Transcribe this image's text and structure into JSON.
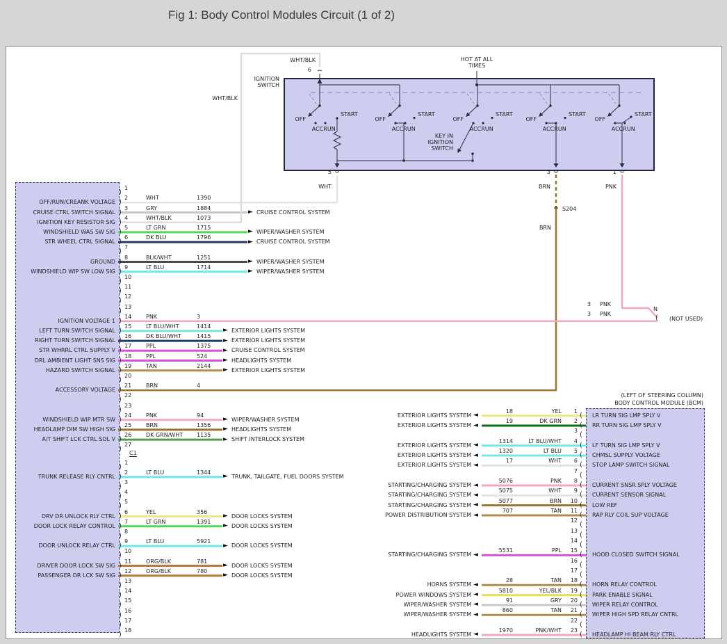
{
  "title": "Fig 1: Body Control Modules Circuit (1 of 2)",
  "colors": {
    "background": "#d6d6d6",
    "canvas": "#ffffff",
    "box_fill": "#cdcdf0",
    "box_border": "#23233c",
    "schematic_line": "#2b2b3b",
    "label_text": "#1e1e1e",
    "wire": {
      "WHT": "#e3e3e3",
      "GRY": "#c6c6c6",
      "WHT/BLK": "#dcdcdc",
      "LT GRN": "#55d655",
      "DK BLU": "#1c3a63",
      "BLK/WHT": "#4a4a44",
      "LT BLU": "#70e8e8",
      "PNK": "#f0a8bc",
      "LT BLU/WHT": "#70e8e8",
      "DK BLU/WHT": "#1c3a63",
      "PPL": "#d94fd9",
      "TAN": "#ae8e4e",
      "BRN": "#94782e",
      "DK GRN/WHT": "#4f9e4f",
      "YEL": "#ece97e",
      "ORG/BLK": "#b8793e",
      "DK GRN": "#0e6e11",
      "YEL/BLK": "#e3e055",
      "PNK/WHT": "#f0a8bc"
    }
  },
  "ignition_switch": {
    "label": "IGNITION SWITCH",
    "hot_label": "HOT AT ALL TIMES",
    "key_in_label": "KEY IN IGNITION SWITCH",
    "positions": [
      "OFF",
      "ACC",
      "RUN",
      "START"
    ],
    "top_pin": {
      "number": "6",
      "wire_color": "WHT/BLK",
      "riser_label": "WHT/BLK"
    },
    "bottom_pins": [
      {
        "number": "5",
        "color": "WHT"
      },
      {
        "number": "3",
        "color": "BRN"
      },
      {
        "number": "1",
        "color": "PNK"
      }
    ],
    "splice_label": "S204",
    "brn_lower_label": "BRN",
    "not_used": {
      "stubs": [
        {
          "circuit": "3",
          "color": "PNK"
        },
        {
          "circuit": "3",
          "color": "PNK"
        }
      ],
      "pin": "N",
      "text": "(NOT USED)"
    }
  },
  "left_connector": {
    "separator": "C1",
    "section1": [
      {
        "n": "1"
      },
      {
        "n": "2",
        "label": "OFF/RUN/CREANK VOLTAGE",
        "color": "WHT",
        "circuit": "1390",
        "route": "ign5"
      },
      {
        "n": "3",
        "label": "CRUISE CTRL SWITCH SIGNAL",
        "color": "GRY",
        "circuit": "1884",
        "system": "CRUISE CONTROL SYSTEM"
      },
      {
        "n": "4",
        "label": "IGNITION KEY RESISTOR SIG",
        "color": "WHT/BLK",
        "circuit": "1073",
        "route": "ign6"
      },
      {
        "n": "5",
        "label": "WINDSHIELD WAS SW SIG",
        "color": "LT GRN",
        "circuit": "1715",
        "system": "WIPER/WASHER SYSTEM"
      },
      {
        "n": "6",
        "label": "STR WHEEL CTRL SIGNAL",
        "color": "DK BLU",
        "circuit": "1796",
        "system": "CRUISE CONTROL SYSTEM"
      },
      {
        "n": "7"
      },
      {
        "n": "8",
        "label": "GROUND",
        "color": "BLK/WHT",
        "circuit": "1251",
        "system": "WIPER/WASHER SYSTEM"
      },
      {
        "n": "9",
        "label": "WINDSHIELD WIP SW LOW SIG",
        "color": "LT BLU",
        "circuit": "1714",
        "system": "WIPER/WASHER SYSTEM"
      },
      {
        "n": "10"
      },
      {
        "n": "11"
      },
      {
        "n": "12"
      },
      {
        "n": "13"
      },
      {
        "n": "14",
        "label": "IGNITION VOLTAGE 1",
        "color": "PNK",
        "circuit": "3",
        "route": "notused"
      },
      {
        "n": "15",
        "label": "LEFT TURN SWITCH SIGNAL",
        "color": "LT BLU/WHT",
        "circuit": "1414",
        "system": "EXTERIOR LIGHTS SYSTEM"
      },
      {
        "n": "16",
        "label": "RIGHT TURN SWITCH SIGNAL",
        "color": "DK BLU/WHT",
        "circuit": "1415",
        "system": "EXTERIOR LIGHTS SYSTEM"
      },
      {
        "n": "17",
        "label": "STR WHRRL CTRL SUPPLY V",
        "color": "PPL",
        "circuit": "1375",
        "system": "CRUISE CONTROL SYSTEM"
      },
      {
        "n": "18",
        "label": "DRL AMBIENT LIGHT SNS SIG",
        "color": "PPL",
        "circuit": "524",
        "system": "HEADLIGHTS SYSTEM"
      },
      {
        "n": "19",
        "label": "HAZARD SWITCH SIGNAL",
        "color": "TAN",
        "circuit": "2144",
        "system": "EXTERIOR LIGHTS SYSTEM"
      },
      {
        "n": "20"
      },
      {
        "n": "21",
        "label": "ACCESSORY VOLTAGE",
        "color": "BRN",
        "circuit": "4",
        "route": "ign3"
      },
      {
        "n": "22"
      },
      {
        "n": "23"
      },
      {
        "n": "24",
        "label": "WINDSHIELD WIP MTR SW",
        "color": "PNK",
        "circuit": "94",
        "system": "WIPER/WASHER SYSTEM"
      },
      {
        "n": "25",
        "label": "HEADLAMP DIM SW HIGH SIG",
        "color": "BRN",
        "circuit": "1356",
        "system": "HEADLIGHTS SYSTEM"
      },
      {
        "n": "26",
        "label": "A/T SHIFT LCK CTRL SOL V",
        "color": "DK GRN/WHT",
        "circuit": "1135",
        "system": "SHIFT INTERLOCK SYSTEM"
      },
      {
        "n": "27"
      }
    ],
    "section2": [
      {
        "n": "1"
      },
      {
        "n": "2",
        "label": "TRUNK RELEASE RLY CNTRL",
        "color": "LT BLU",
        "circuit": "1344",
        "system": "TRUNK, TAILGATE, FUEL DOORS SYSTEM"
      },
      {
        "n": "3"
      },
      {
        "n": "4"
      },
      {
        "n": "5"
      },
      {
        "n": "6",
        "label": "DRV DR UNLOCK RLY CTRL",
        "color": "YEL",
        "circuit": "356",
        "system": "DOOR LOCKS SYSTEM"
      },
      {
        "n": "7",
        "label": "DOOR LOCK RELAY CONTROL",
        "color": "LT GRN",
        "circuit": "1391",
        "system": "DOOR LOCKS SYSTEM"
      },
      {
        "n": "8"
      },
      {
        "n": "9",
        "label": "DOOR UNLOCK RELAY CTRL",
        "color": "LT BLU",
        "circuit": "5921",
        "system": "DOOR LOCKS SYSTEM"
      },
      {
        "n": "10"
      },
      {
        "n": "11",
        "label": "DRIVER DOOR LOCK SW SIG",
        "color": "ORG/BLK",
        "circuit": "781",
        "system": "DOOR LOCKS SYSTEM"
      },
      {
        "n": "12",
        "label": "PASSENGER DR LCK SW SIG",
        "color": "ORG/BLK",
        "circuit": "780",
        "system": "DOOR LOCKS SYSTEM"
      },
      {
        "n": "13"
      },
      {
        "n": "14"
      },
      {
        "n": "15"
      },
      {
        "n": "16"
      },
      {
        "n": "17"
      },
      {
        "n": "18"
      }
    ]
  },
  "bcm": {
    "location_line": "(LEFT OF STEERING COLUMN)",
    "name_line": "BODY CONTROL MODULE (BCM)",
    "pins": [
      {
        "n": "1",
        "system": "EXTERIOR LIGHTS SYSTEM",
        "circuit": "18",
        "color": "YEL",
        "label": "LR TURN SIG LMP SPLY V"
      },
      {
        "n": "2",
        "system": "EXTERIOR LIGHTS SYSTEM",
        "circuit": "19",
        "color": "DK GRN",
        "label": "RR TURN SIG LMP SPLY V"
      },
      {
        "n": "3"
      },
      {
        "n": "4",
        "system": "EXTERIOR LIGHTS SYSTEM",
        "circuit": "1314",
        "color": "LT BLU/WHT",
        "label": "LF TURN SIG LMP SPLY V"
      },
      {
        "n": "5",
        "system": "EXTERIOR LIGHTS SYSTEM",
        "circuit": "1320",
        "color": "LT BLU",
        "label": "CHMSL SUPPLY VOLTAGE"
      },
      {
        "n": "6",
        "system": "EXTERIOR LIGHTS SYSTEM",
        "circuit": "17",
        "color": "WHT",
        "label": "STOP LAMP SWITCH SIGNAL"
      },
      {
        "n": "7"
      },
      {
        "n": "8",
        "system": "STARTING/CHARGING SYSTEM",
        "circuit": "5076",
        "color": "PNK",
        "label": "CURRENT SNSR SPLY VOLTAGE"
      },
      {
        "n": "9",
        "system": "STARTING/CHARGING SYSTEM",
        "circuit": "5075",
        "color": "WHT",
        "label": "CURRENT SENSOR SIGNAL"
      },
      {
        "n": "10",
        "system": "STARTING/CHARGING SYSTEM",
        "circuit": "5077",
        "color": "BRN",
        "label": "LOW REF"
      },
      {
        "n": "11",
        "system": "POWER DISTRIBUTION SYSTEM",
        "circuit": "707",
        "color": "TAN",
        "label": "RAP RLY COIL SUP VOLTAGE"
      },
      {
        "n": "12"
      },
      {
        "n": "13"
      },
      {
        "n": "14"
      },
      {
        "n": "15",
        "system": "STARTING/CHARGING SYSTEM",
        "circuit": "5531",
        "color": "PPL",
        "label": "HOOD CLOSED SWITCH SIGNAL"
      },
      {
        "n": "16"
      },
      {
        "n": "17"
      },
      {
        "n": "18",
        "system": "HORNS SYSTEM",
        "circuit": "28",
        "color": "TAN",
        "label": "HORN RELAY CONTROL"
      },
      {
        "n": "19",
        "system": "POWER WINDOWS SYSTEM",
        "circuit": "5810",
        "color": "YEL/BLK",
        "label": "PARK ENABLE SIGNAL"
      },
      {
        "n": "20",
        "system": "WIPER/WASHER SYSTEM",
        "circuit": "91",
        "color": "GRY",
        "label": "WIPER RELAY CONTROL"
      },
      {
        "n": "21",
        "system": "WIPER/WASHER SYSTEM",
        "circuit": "860",
        "color": "TAN",
        "label": "WIPER HIGH SPD RELAY CNTRL"
      },
      {
        "n": "22"
      },
      {
        "n": "23",
        "system": "HEADLIGHTS SYSTEM",
        "circuit": "1970",
        "color": "PNK/WHT",
        "label": "HEADLAMP HI BEAM RLY CTRL"
      }
    ]
  }
}
